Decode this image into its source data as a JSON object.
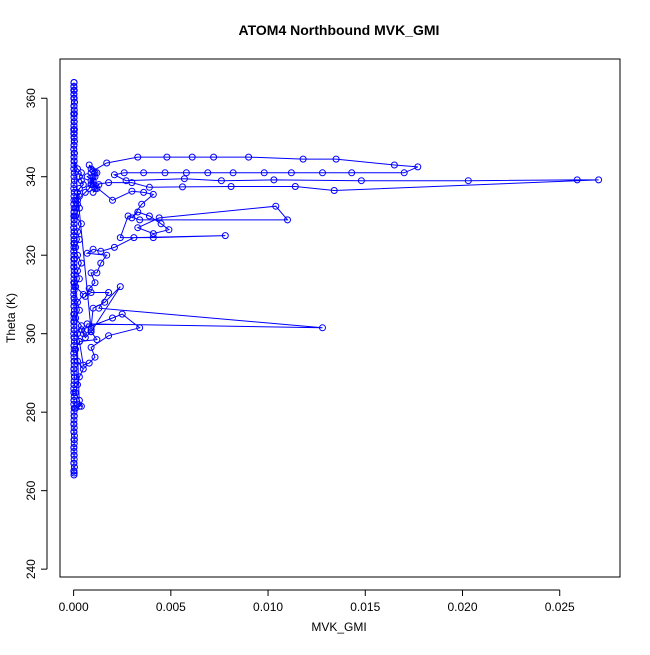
{
  "chart_data": {
    "type": "line",
    "title": "ATOM4 Northbound MVK_GMI",
    "xlabel": "MVK_GMI",
    "ylabel": "Theta (K)",
    "xlim": [
      -0.0007,
      0.0281
    ],
    "ylim": [
      238,
      370
    ],
    "x_ticks": [
      0.0,
      0.005,
      0.01,
      0.015,
      0.02,
      0.025
    ],
    "x_tick_labels": [
      "0.000",
      "0.005",
      "0.010",
      "0.015",
      "0.020",
      "0.025"
    ],
    "y_ticks": [
      240,
      260,
      280,
      300,
      320,
      340,
      360
    ],
    "y_tick_labels": [
      "240",
      "260",
      "280",
      "300",
      "320",
      "340",
      "360"
    ],
    "grid": false,
    "legend": "none",
    "series": [
      {
        "color": "#0000ff",
        "marker": "open-circle",
        "x": [
          2e-05,
          1e-05,
          3e-05,
          2e-05,
          1e-05,
          4e-05,
          2e-05,
          3e-05,
          1e-05,
          2e-05,
          3e-05,
          2e-05,
          4e-05,
          1e-05,
          2e-05,
          3e-05,
          2e-05,
          1e-05,
          4e-05,
          2e-05,
          3e-05,
          2e-05,
          1e-05,
          3e-05,
          2e-05,
          4e-05,
          2e-05,
          1e-05,
          3e-05,
          2e-05,
          2e-05,
          1e-05,
          3e-05,
          2e-05,
          4e-05,
          3e-05,
          2e-05,
          1e-05,
          3e-05,
          2e-05,
          3e-05,
          4e-05,
          2e-05,
          1e-05,
          2e-05,
          3e-05,
          2e-05,
          1e-05,
          3e-05,
          2e-05,
          2e-05,
          4e-05,
          3e-05,
          2e-05,
          1e-05,
          2e-05,
          3e-05,
          2e-05,
          4e-05,
          1e-05,
          2e-05,
          3e-05,
          2e-05,
          3e-05,
          1e-05,
          2e-05,
          4e-05,
          2e-05,
          3e-05,
          1e-05,
          2e-05,
          2e-05,
          3e-05,
          1e-05,
          2e-05,
          4e-05,
          3e-05,
          2e-05,
          1e-05,
          2e-05,
          3e-05,
          2e-05,
          1e-05,
          4e-05,
          2e-05,
          3e-05,
          2e-05,
          1e-05,
          3e-05,
          2e-05,
          4e-05,
          2e-05,
          3e-05,
          1e-05,
          2e-05,
          2e-05,
          3e-05,
          1e-05,
          4e-05,
          2e-05,
          3e-05,
          2e-05,
          1e-05,
          2e-05,
          3e-05,
          2e-05,
          4e-05,
          1e-05,
          2e-05,
          3e-05,
          3e-05,
          2e-05,
          1e-05,
          2e-05,
          4e-05,
          2e-05,
          3e-05,
          1e-05,
          2e-05,
          3e-05,
          2e-05,
          1e-05,
          4e-05,
          2e-05,
          3e-05,
          2e-05,
          1e-05,
          3e-05,
          2e-05,
          4e-05,
          0.0003,
          0.0001,
          0.0002,
          0.0004,
          0.0003,
          0.0001,
          0.0002,
          0.0003,
          0.0005,
          0.0002,
          0.0001,
          0.0003,
          0.0002,
          0.0004,
          0.0001,
          0.0003,
          0.0002,
          0.0005,
          0.0001,
          0.0003,
          0.0002,
          0.0004,
          0.0002,
          0.0001,
          0.0003,
          0.0002,
          0.0004,
          0.0001,
          0.0003,
          0.0002,
          0.0006,
          0.0008,
          0.0009,
          0.001,
          0.0007,
          0.0011,
          0.0009,
          0.0008,
          0.0012,
          0.001,
          0.0009,
          0.0013,
          0.0011,
          0.001,
          0.0012,
          0.0009,
          0.001,
          0.0011,
          0.0009,
          0.001,
          0.0017,
          0.0033,
          0.0048,
          0.0061,
          0.0072,
          0.009,
          0.0118,
          0.0135,
          0.0165,
          0.0177,
          0.017,
          0.0143,
          0.0128,
          0.0112,
          0.0098,
          0.0082,
          0.0069,
          0.0058,
          0.0047,
          0.0036,
          0.0026,
          0.0021,
          0.0027,
          0.0057,
          0.0076,
          0.0103,
          0.0148,
          0.0203,
          0.0259,
          0.027,
          0.0134,
          0.0114,
          0.0081,
          0.0056,
          0.0039,
          0.003,
          0.0018,
          0.001,
          0.002,
          0.003,
          0.0036,
          0.0041,
          0.0035,
          0.003,
          0.0033,
          0.0039,
          0.0045,
          0.0049,
          0.0041,
          0.0033,
          0.0044,
          0.0104,
          0.011,
          0.0034,
          0.0028,
          0.0024,
          0.0041,
          0.0078,
          0.0031,
          0.0021,
          0.0014,
          0.001,
          0.0007,
          0.0017,
          0.0014,
          0.0012,
          0.0009,
          0.0011,
          0.0008,
          0.0006,
          0.0009,
          0.0018,
          0.0013,
          0.0128,
          0.0007,
          0.0005,
          0.0009,
          0.0006,
          0.0004,
          0.002,
          0.0025,
          0.0034,
          0.0018,
          0.0009,
          0.0011,
          0.0008,
          0.0005,
          0.0003,
          0.0012,
          0.0009,
          0.0024,
          0.0016,
          0.001,
          0.0009,
          0.0009,
          2e-05,
          3e-05,
          1e-05,
          2e-05,
          4e-05,
          2e-05,
          3e-05,
          1e-05,
          2e-05,
          3e-05,
          2e-05,
          1e-05,
          3e-05,
          2e-05,
          4e-05,
          2e-05,
          1e-05,
          3e-05,
          2e-05,
          2e-05,
          1e-05,
          3e-05,
          2e-05,
          4e-05,
          2e-05,
          1e-05,
          3e-05,
          2e-05,
          3e-05,
          2e-05,
          0.0002,
          0.0004,
          0.0003,
          0.0004,
          0.0005,
          0.0003,
          0.0002,
          0.0003,
          0.0001,
          0.0002,
          0.0001,
          2e-05,
          1e-05,
          2e-05,
          3e-05,
          1e-05,
          2e-05,
          1e-05,
          2e-05,
          1e-05,
          2e-05,
          1e-05,
          2e-05,
          1e-05
        ],
        "y": [
          364,
          363,
          362,
          361,
          360,
          359,
          358,
          357,
          356,
          355,
          354,
          353,
          352,
          351,
          350,
          349,
          348,
          347,
          346,
          345,
          344,
          343,
          342,
          341,
          340,
          339,
          338,
          337,
          336,
          335,
          334,
          333,
          332,
          331,
          330,
          329,
          328,
          327,
          326,
          325,
          324,
          323,
          322,
          321,
          320,
          319,
          318,
          317,
          316,
          315,
          314,
          313,
          312,
          311,
          310,
          309,
          308,
          307,
          306,
          305,
          304,
          303,
          302,
          301,
          300,
          299,
          298,
          297,
          296,
          295,
          294,
          293,
          292,
          291,
          290,
          289,
          288,
          287,
          286,
          285,
          284,
          283,
          282,
          281,
          280,
          279,
          278,
          277,
          276,
          275,
          274,
          273,
          272,
          271,
          270,
          269,
          268,
          267,
          266,
          265,
          264.5,
          264,
          265,
          267,
          269,
          271,
          273,
          275,
          277,
          279,
          281,
          283,
          285,
          287,
          289,
          291,
          293,
          295,
          297,
          299,
          301,
          303,
          305,
          307,
          309,
          311,
          313,
          315,
          317,
          319,
          281.5,
          281,
          282,
          281.5,
          283,
          285,
          287,
          289,
          291,
          293,
          296,
          298,
          300,
          302,
          304,
          306,
          308,
          310,
          312,
          314,
          316,
          318,
          320,
          322,
          324,
          326,
          328,
          330,
          332,
          334,
          336,
          337,
          338,
          339,
          340,
          341,
          342,
          343,
          341,
          340,
          339,
          338,
          337,
          336,
          337,
          338,
          339,
          340,
          341,
          341.5,
          343.5,
          345,
          345,
          345,
          345,
          345,
          344.5,
          344.5,
          343,
          342.5,
          341,
          341,
          341,
          341,
          341,
          341,
          341,
          341,
          341,
          341,
          341,
          340.5,
          339,
          339.5,
          339,
          339.2,
          339,
          339,
          339.2,
          339.2,
          336.5,
          337.5,
          337.5,
          337.4,
          337.3,
          338.5,
          338.5,
          338,
          334,
          336.3,
          336,
          335.5,
          333,
          329.5,
          331,
          330,
          328,
          326.5,
          325.5,
          327,
          329.5,
          332.5,
          329,
          329,
          330,
          324.5,
          324.5,
          325,
          324.5,
          322,
          321,
          321.5,
          320.5,
          320,
          318,
          315.5,
          315.5,
          313,
          311.5,
          309.5,
          310.5,
          310.5,
          306.5,
          301.5,
          302.5,
          300,
          300.5,
          299,
          301,
          304,
          305,
          301.5,
          299.5,
          296.5,
          294,
          292.5,
          292,
          298,
          298.5,
          300.5,
          312,
          308,
          306.5,
          301.5,
          301,
          345,
          346,
          347,
          348,
          349,
          350,
          351,
          352,
          353,
          354,
          355,
          356,
          357,
          358,
          359,
          360,
          361,
          362,
          363,
          364,
          362,
          360,
          358,
          356,
          354,
          352,
          350,
          348,
          346,
          344,
          342,
          341,
          340,
          339,
          338,
          337,
          336,
          335,
          334,
          333,
          332,
          331,
          330,
          329,
          328,
          327,
          326,
          325,
          324,
          323,
          322,
          321,
          320,
          319
        ]
      }
    ]
  }
}
